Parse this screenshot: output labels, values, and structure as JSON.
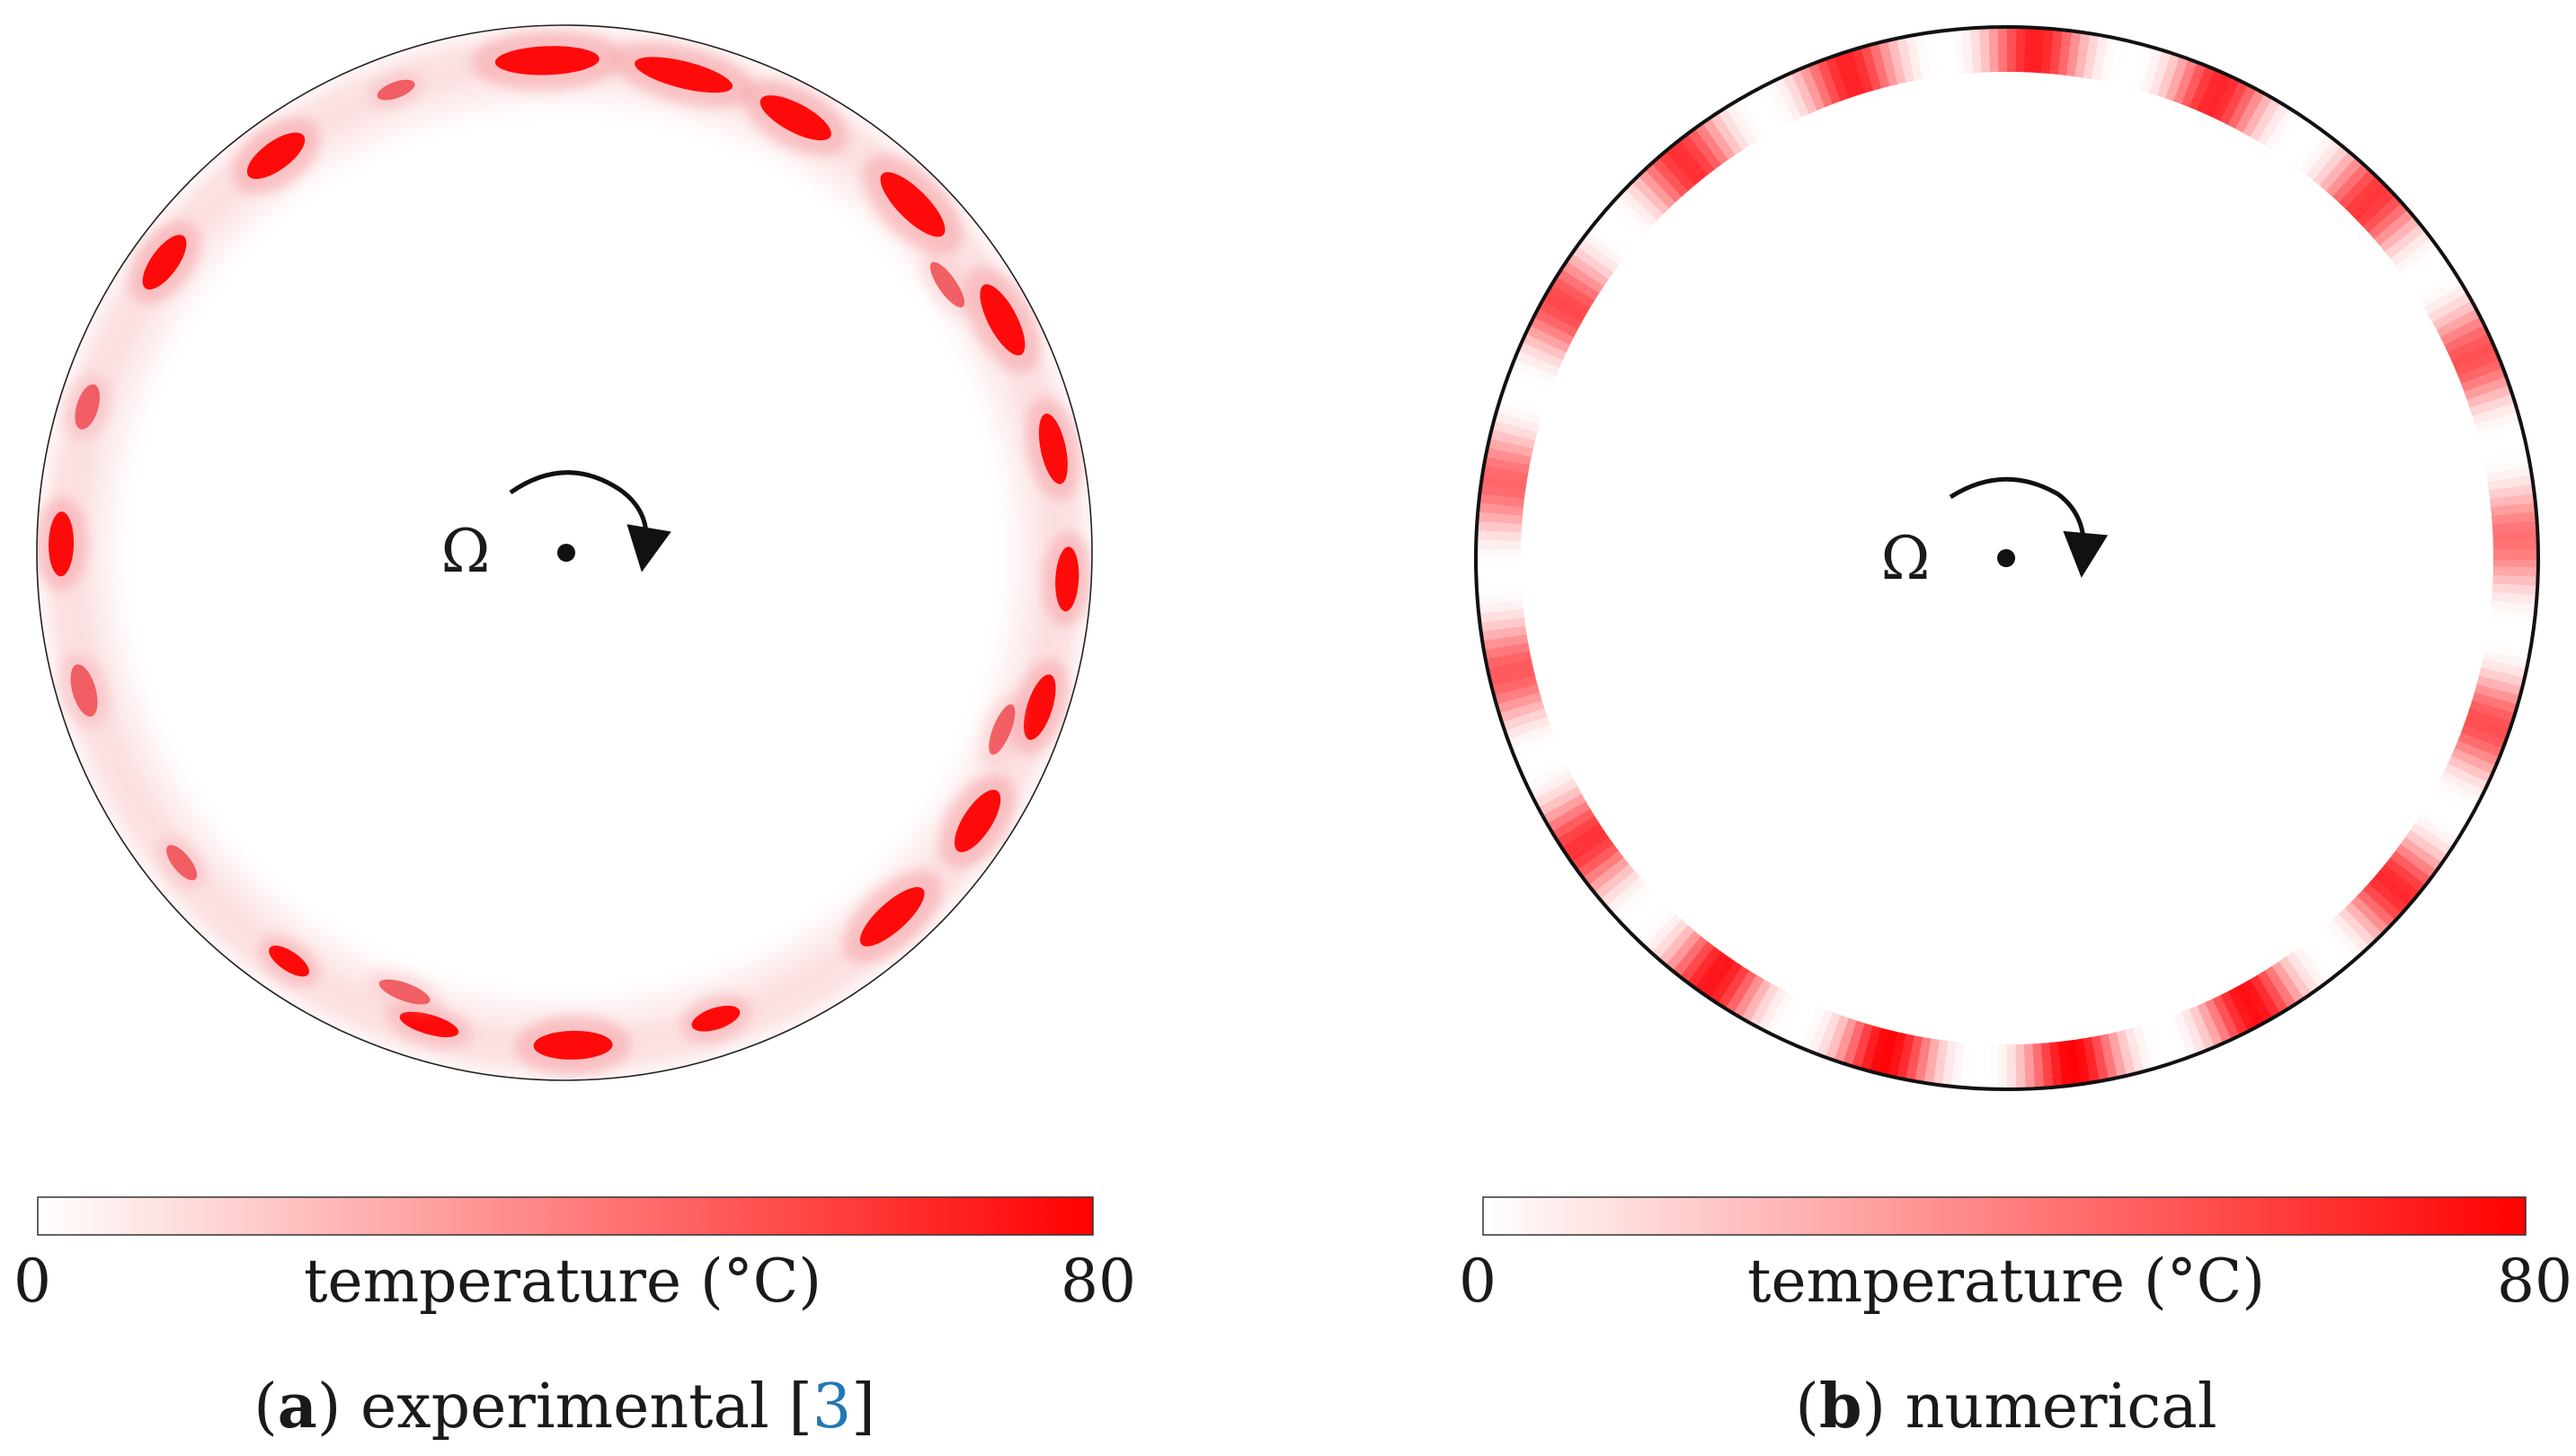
{
  "panels": [
    {
      "id": "a",
      "kind": "experimental",
      "omega_symbol": "Ω",
      "colorbar": {
        "min_label": "0",
        "max_label": "80",
        "title": "temperature (°C)",
        "color_min": "#ffffff",
        "color_max": "#ff0000"
      },
      "caption": {
        "letter": "a",
        "text": "experimental",
        "cite_open": "[",
        "cite_num": "3",
        "cite_close": "]"
      }
    },
    {
      "id": "b",
      "kind": "numerical",
      "omega_symbol": "Ω",
      "colorbar": {
        "min_label": "0",
        "max_label": "80",
        "title": "temperature (°C)",
        "color_min": "#ffffff",
        "color_max": "#ff0000"
      },
      "caption": {
        "letter": "b",
        "text": "numerical"
      }
    }
  ],
  "colors": {
    "hot": "#ff0000",
    "warm": "#f28a8a",
    "faint": "#fdeeee",
    "cite": "#1f77b4",
    "outline": "#111111"
  }
}
